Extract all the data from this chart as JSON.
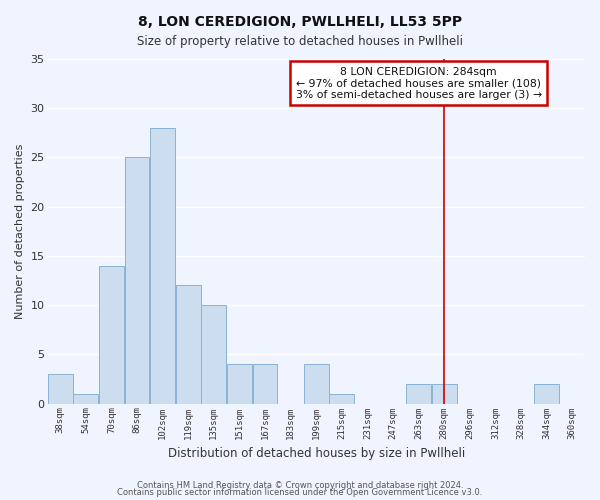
{
  "title": "8, LON CEREDIGION, PWLLHELI, LL53 5PP",
  "subtitle": "Size of property relative to detached houses in Pwllheli",
  "xlabel": "Distribution of detached houses by size in Pwllheli",
  "ylabel": "Number of detached properties",
  "bar_color": "#ccddf0",
  "bar_edge_color": "#8ab4d4",
  "bins": [
    "38sqm",
    "54sqm",
    "70sqm",
    "86sqm",
    "102sqm",
    "119sqm",
    "135sqm",
    "151sqm",
    "167sqm",
    "183sqm",
    "199sqm",
    "215sqm",
    "231sqm",
    "247sqm",
    "263sqm",
    "280sqm",
    "296sqm",
    "312sqm",
    "328sqm",
    "344sqm",
    "360sqm"
  ],
  "values": [
    3,
    1,
    14,
    25,
    28,
    12,
    10,
    4,
    4,
    0,
    4,
    1,
    0,
    0,
    2,
    2,
    0,
    0,
    0,
    2,
    0
  ],
  "ylim": [
    0,
    35
  ],
  "yticks": [
    0,
    5,
    10,
    15,
    20,
    25,
    30,
    35
  ],
  "annotation_title": "8 LON CEREDIGION: 284sqm",
  "annotation_line1": "← 97% of detached houses are smaller (108)",
  "annotation_line2": "3% of semi-detached houses are larger (3) →",
  "redline_bin_index": 15,
  "footer1": "Contains HM Land Registry data © Crown copyright and database right 2024.",
  "footer2": "Contains public sector information licensed under the Open Government Licence v3.0.",
  "background_color": "#f0f4ff",
  "grid_color": "#ffffff",
  "annotation_box_color": "#ffffff",
  "annotation_border_color": "#cc0000",
  "redline_color": "#cc0000",
  "title_fontsize": 10,
  "subtitle_fontsize": 9
}
